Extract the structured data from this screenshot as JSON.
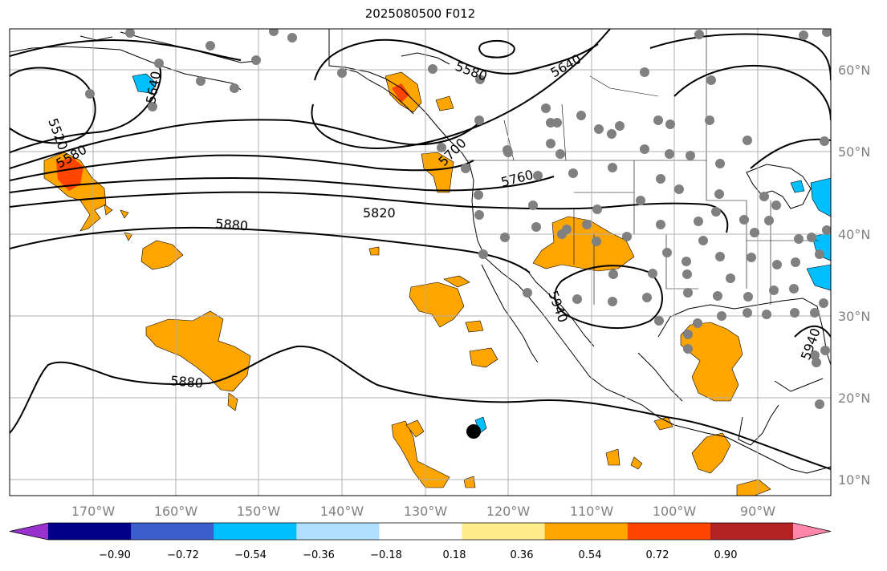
{
  "title": "2025080500 F012",
  "lat_labels": [
    "60°N",
    "50°N",
    "40°N",
    "30°N",
    "20°N",
    "10°N"
  ],
  "lon_labels": [
    "170°W",
    "160°W",
    "150°W",
    "140°W",
    "130°W",
    "120°W",
    "110°W",
    "100°W",
    "90°W"
  ],
  "contour_labels": [
    "5520",
    "5580",
    "5640",
    "5580",
    "5640",
    "5700",
    "5760",
    "5820",
    "5880",
    "5880",
    "5940",
    "5940"
  ],
  "colorbar": {
    "ticks": [
      "−0.90",
      "−0.72",
      "−0.54",
      "−0.36",
      "−0.18",
      "0.18",
      "0.36",
      "0.54",
      "0.72",
      "0.90"
    ],
    "colors": [
      "#9932cc",
      "#00008b",
      "#3a5fcd",
      "#00bfff",
      "#b0e0ff",
      "#ffffff",
      "#ffec8b",
      "#ffa500",
      "#ff4500",
      "#b22222",
      "#ff88aa"
    ]
  },
  "colors": {
    "positive": "#ffa500",
    "positive_strong": "#ff4500",
    "negative": "#00bfff",
    "station": "#808080",
    "contour": "#000000",
    "grid": "#b0b0b0"
  }
}
